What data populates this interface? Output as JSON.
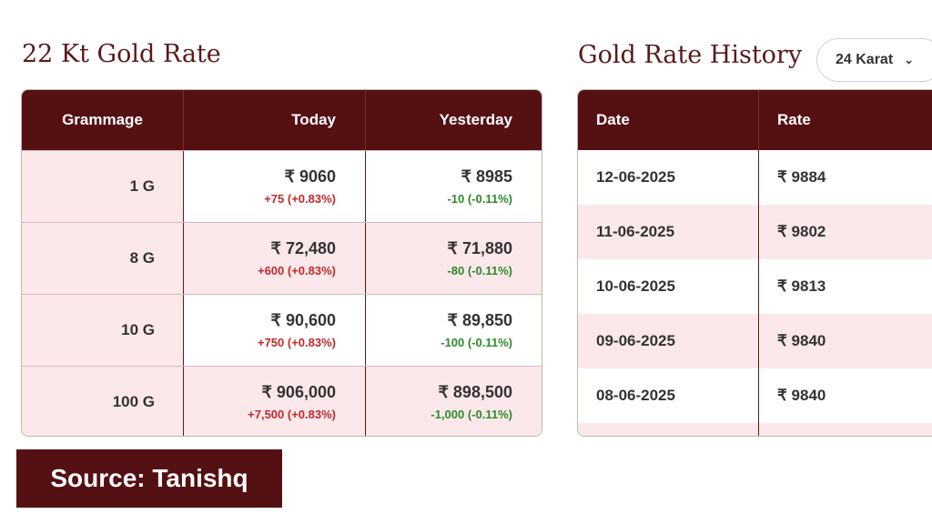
{
  "left": {
    "title": "22 Kt Gold Rate",
    "headers": {
      "grammage": "Grammage",
      "today": "Today",
      "yesterday": "Yesterday"
    },
    "rows": [
      {
        "grammage": "1 G",
        "today": "₹ 9060",
        "today_change": "+75 (+0.83%)",
        "yesterday": "₹ 8985",
        "yesterday_change": "-10 (-0.11%)"
      },
      {
        "grammage": "8 G",
        "today": "₹ 72,480",
        "today_change": "+600 (+0.83%)",
        "yesterday": "₹ 71,880",
        "yesterday_change": "-80 (-0.11%)"
      },
      {
        "grammage": "10 G",
        "today": "₹ 90,600",
        "today_change": "+750 (+0.83%)",
        "yesterday": "₹ 89,850",
        "yesterday_change": "-100 (-0.11%)"
      },
      {
        "grammage": "100 G",
        "today": "₹ 906,000",
        "today_change": "+7,500 (+0.83%)",
        "yesterday": "₹ 898,500",
        "yesterday_change": "-1,000 (-0.11%)"
      }
    ]
  },
  "right": {
    "title": "Gold Rate History",
    "karat_select": "24 Karat",
    "headers": {
      "date": "Date",
      "rate": "Rate"
    },
    "rows": [
      {
        "date": "12-06-2025",
        "rate": "₹ 9884"
      },
      {
        "date": "11-06-2025",
        "rate": "₹ 9802"
      },
      {
        "date": "10-06-2025",
        "rate": "₹ 9813"
      },
      {
        "date": "09-06-2025",
        "rate": "₹ 9840"
      },
      {
        "date": "08-06-2025",
        "rate": "₹ 9840"
      }
    ]
  },
  "source_label": "Source: Tanishq",
  "colors": {
    "brand": "#551014",
    "row_pink": "#fbe8ea",
    "positive": "#c0292b",
    "negative": "#2b8a2b"
  }
}
